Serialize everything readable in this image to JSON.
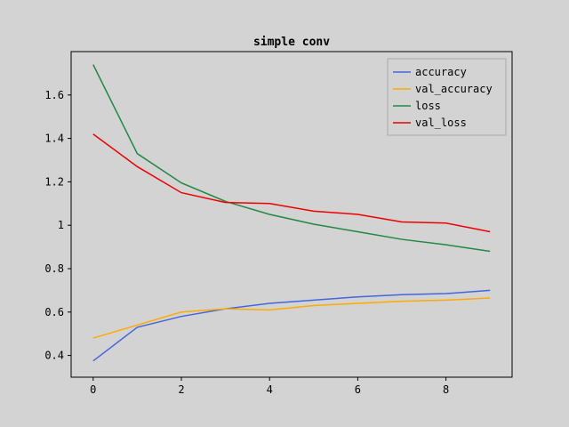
{
  "chart_data": {
    "type": "line",
    "title": "simple conv",
    "xlabel": "",
    "ylabel": "",
    "xlim": [
      -0.5,
      9.5
    ],
    "ylim": [
      0.3,
      1.8
    ],
    "x": [
      0,
      1,
      2,
      3,
      4,
      5,
      6,
      7,
      8,
      9
    ],
    "x_ticks": [
      0,
      2,
      4,
      6,
      8
    ],
    "y_ticks": [
      0.4,
      0.6,
      0.8,
      1,
      1.2,
      1.4,
      1.6
    ],
    "x_tick_labels": [
      "0",
      "2",
      "4",
      "6",
      "8"
    ],
    "y_tick_labels": [
      "0.4",
      "0.6",
      "0.8",
      "1",
      "1.2",
      "1.4",
      "1.6"
    ],
    "grid": false,
    "legend_position": "top-right",
    "series": [
      {
        "name": "accuracy",
        "color": "#4466dd",
        "values": [
          0.375,
          0.53,
          0.58,
          0.615,
          0.64,
          0.655,
          0.67,
          0.68,
          0.685,
          0.7
        ]
      },
      {
        "name": "val_accuracy",
        "color": "#ffaa00",
        "values": [
          0.48,
          0.54,
          0.6,
          0.615,
          0.61,
          0.63,
          0.64,
          0.65,
          0.655,
          0.665
        ]
      },
      {
        "name": "loss",
        "color": "#228844",
        "values": [
          1.74,
          1.33,
          1.195,
          1.11,
          1.05,
          1.005,
          0.97,
          0.935,
          0.91,
          0.88
        ]
      },
      {
        "name": "val_loss",
        "color": "#ee0000",
        "values": [
          1.42,
          1.27,
          1.15,
          1.105,
          1.1,
          1.065,
          1.05,
          1.015,
          1.01,
          0.97
        ]
      }
    ]
  }
}
